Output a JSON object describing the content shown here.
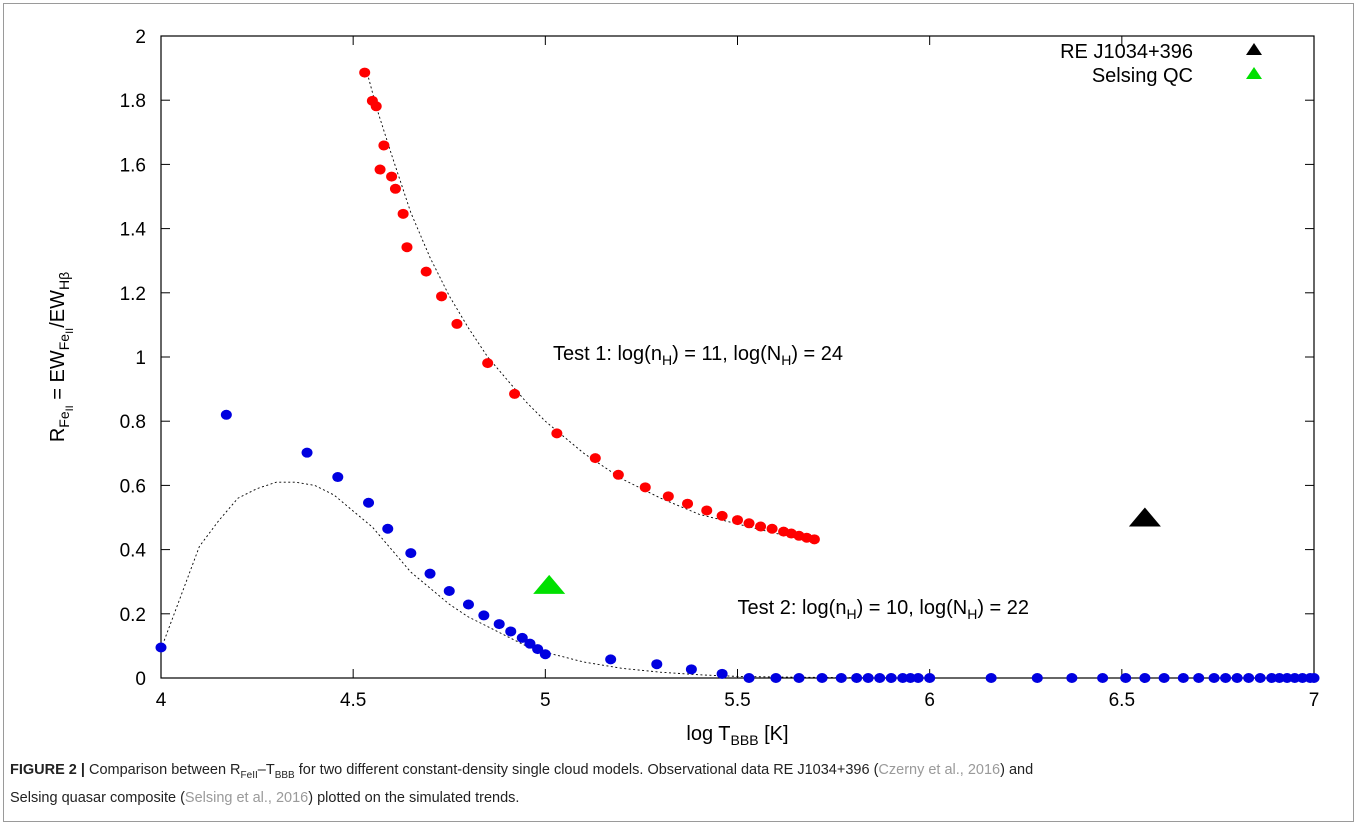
{
  "chart_data": {
    "type": "scatter",
    "xlim": [
      4,
      7
    ],
    "ylim": [
      0,
      2
    ],
    "xticks": [
      "4",
      "4.5",
      "5",
      "5.5",
      "6",
      "6.5",
      "7"
    ],
    "yticks": [
      "0",
      "0.2",
      "0.4",
      "0.6",
      "0.8",
      "1",
      "1.2",
      "1.4",
      "1.6",
      "1.8",
      "2"
    ],
    "xlabel": {
      "main": "log T",
      "sub": "BBB",
      "unit": " [K]"
    },
    "ylabel": {
      "r": "R",
      "r_sub": "Fe",
      "r_subsub": "II",
      "eq": " = EW",
      "ew1_sub": "Fe",
      "ew1_subsub": "II",
      "slash": "/EW",
      "ew2_sub": "Hβ"
    },
    "grid": false,
    "legend_position": "top-right",
    "legend": [
      {
        "label": "RE J1034+396",
        "color": "#000000"
      },
      {
        "label": "Selsing QC",
        "color": "#00e000"
      }
    ],
    "annotations": [
      {
        "id": "test1",
        "parts": [
          "Test 1: log(n",
          "H",
          ") = 11, log(N",
          "H",
          ") = 24"
        ],
        "x": 5.02,
        "y": 0.99
      },
      {
        "id": "test2",
        "parts": [
          "Test 2: log(n",
          "H",
          ") = 10, log(N",
          "H",
          ") = 22"
        ],
        "x": 5.5,
        "y": 0.2
      }
    ],
    "series": [
      {
        "id": "test1-points",
        "color": "#ff0000",
        "x": [
          4.53,
          4.55,
          4.56,
          4.57,
          4.58,
          4.6,
          4.61,
          4.63,
          4.64,
          4.69,
          4.73,
          4.77,
          4.85,
          4.92,
          5.03,
          5.13,
          5.19,
          5.26,
          5.32,
          5.37,
          5.42,
          5.46,
          5.5,
          5.53,
          5.56,
          5.59,
          5.62,
          5.64,
          5.66,
          5.68,
          5.7
        ],
        "y": [
          1.886,
          1.798,
          1.781,
          1.584,
          1.659,
          1.562,
          1.524,
          1.446,
          1.342,
          1.266,
          1.189,
          1.103,
          0.981,
          0.885,
          0.762,
          0.685,
          0.633,
          0.594,
          0.566,
          0.543,
          0.522,
          0.505,
          0.492,
          0.482,
          0.472,
          0.465,
          0.456,
          0.45,
          0.443,
          0.437,
          0.432
        ]
      },
      {
        "id": "test2-points",
        "color": "#0000e0",
        "x": [
          4.0,
          4.17,
          4.38,
          4.46,
          4.54,
          4.59,
          4.65,
          4.7,
          4.75,
          4.8,
          4.84,
          4.88,
          4.91,
          4.94,
          4.96,
          4.98,
          5.0,
          5.17,
          5.29,
          5.38,
          5.46,
          5.53,
          5.6,
          5.66,
          5.72,
          5.77,
          5.81,
          5.84,
          5.87,
          5.9,
          5.93,
          5.95,
          5.97,
          6.0,
          6.16,
          6.28,
          6.37,
          6.45,
          6.51,
          6.56,
          6.61,
          6.66,
          6.7,
          6.74,
          6.77,
          6.8,
          6.83,
          6.86,
          6.89,
          6.91,
          6.93,
          6.95,
          6.97,
          6.99,
          7.0
        ],
        "y": [
          0.095,
          0.82,
          0.702,
          0.626,
          0.546,
          0.465,
          0.389,
          0.325,
          0.271,
          0.229,
          0.195,
          0.168,
          0.145,
          0.125,
          0.107,
          0.09,
          0.074,
          0.058,
          0.043,
          0.027,
          0.013,
          0.0,
          0.0,
          0.0,
          0.0,
          0.0,
          0.0,
          0.0,
          0.0,
          0.0,
          0.0,
          0.0,
          0.0,
          0.0,
          0.0,
          0.0,
          0.0,
          0.0,
          0.0,
          0.0,
          0.0,
          0.0,
          0.0,
          0.0,
          0.0,
          0.0,
          0.0,
          0.0,
          0.0,
          0.0,
          0.0,
          0.0,
          0.0,
          0.0,
          0.0
        ]
      },
      {
        "id": "test1-fit",
        "style": "dotted",
        "x": [
          4.54,
          4.56,
          4.6,
          4.65,
          4.7,
          4.75,
          4.8,
          4.85,
          4.9,
          4.95,
          5.0,
          5.1,
          5.2,
          5.3,
          5.4,
          5.5,
          5.6,
          5.7
        ],
        "y": [
          1.87,
          1.78,
          1.63,
          1.45,
          1.31,
          1.19,
          1.09,
          1.0,
          0.93,
          0.86,
          0.8,
          0.7,
          0.62,
          0.56,
          0.51,
          0.48,
          0.45,
          0.43
        ]
      },
      {
        "id": "test2-fit",
        "style": "dotted",
        "x": [
          4.0,
          4.05,
          4.1,
          4.15,
          4.2,
          4.25,
          4.3,
          4.35,
          4.4,
          4.45,
          4.5,
          4.55,
          4.6,
          4.65,
          4.7,
          4.75,
          4.8,
          4.85,
          4.9,
          4.95,
          5.0,
          5.1,
          5.2,
          5.3,
          5.4,
          5.5,
          5.6,
          5.8,
          6.0,
          6.5,
          7.0
        ],
        "y": [
          0.09,
          0.25,
          0.41,
          0.49,
          0.56,
          0.59,
          0.61,
          0.61,
          0.6,
          0.57,
          0.52,
          0.47,
          0.4,
          0.33,
          0.28,
          0.23,
          0.19,
          0.16,
          0.13,
          0.1,
          0.08,
          0.05,
          0.03,
          0.018,
          0.01,
          0.005,
          0.003,
          0.001,
          0.0,
          0.0,
          0.0
        ]
      },
      {
        "id": "re-j1034",
        "name": "RE J1034+396",
        "marker": "triangle",
        "color": "#000000",
        "x": [
          6.56
        ],
        "y": [
          0.5
        ]
      },
      {
        "id": "selsing-qc",
        "name": "Selsing QC",
        "marker": "triangle",
        "color": "#00e000",
        "x": [
          5.01
        ],
        "y": [
          0.29
        ]
      }
    ]
  },
  "caption": {
    "label": "FIGURE 2 |",
    "line1_a": " Comparison between R",
    "line1_sub": "FeII",
    "line1_b": "–T",
    "line1_sub2": "BBB",
    "line1_c": " for two different constant-density single cloud models. Observational data RE J1034+396 (",
    "cite1": "Czerny et al., 2016",
    "line1_d": ") and",
    "line2_a": "Selsing quasar composite (",
    "cite2": "Selsing et al., 2016",
    "line2_b": ") plotted on the simulated trends."
  }
}
